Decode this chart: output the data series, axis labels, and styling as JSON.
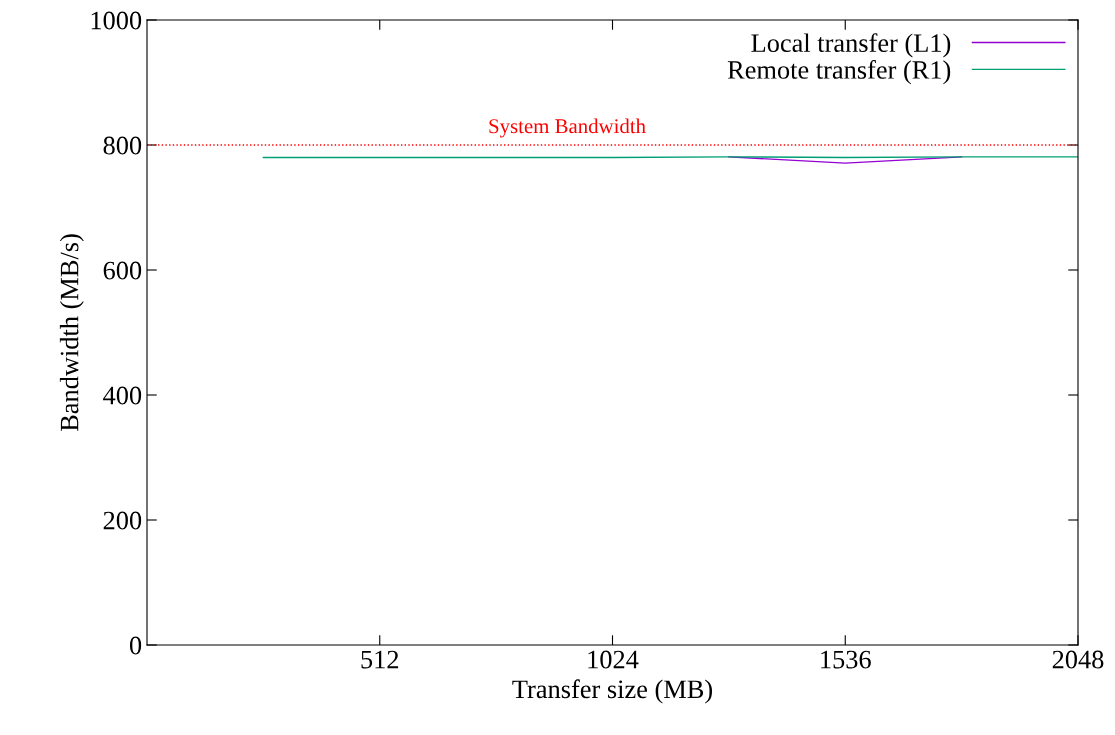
{
  "chart_data": {
    "type": "line",
    "xlabel": "Transfer size (MB)",
    "ylabel": "Bandwidth (MB/s)",
    "x": [
      256,
      512,
      768,
      1024,
      1280,
      1536,
      1792,
      2048
    ],
    "series": [
      {
        "name": "Local transfer (L1)",
        "color": "#9400d3",
        "values": [
          null,
          null,
          null,
          null,
          781,
          771,
          781,
          null
        ]
      },
      {
        "name": "Remote transfer (R1)",
        "color": "#009e73",
        "values": [
          780,
          780,
          780,
          780,
          781,
          780,
          781,
          781
        ]
      }
    ],
    "xlim": [
      0,
      2048
    ],
    "xticks": [
      512,
      1024,
      1536,
      2048
    ],
    "ylim": [
      0,
      1000
    ],
    "yticks": [
      0,
      200,
      400,
      600,
      800,
      1000
    ],
    "ref_lines": [
      {
        "axis": "y",
        "value": 800,
        "label": "System Bandwidth",
        "color": "#ff0000",
        "line_style": "dotted"
      }
    ],
    "legend": "top right",
    "grid": false,
    "marker": "none",
    "line_style": "solid"
  }
}
